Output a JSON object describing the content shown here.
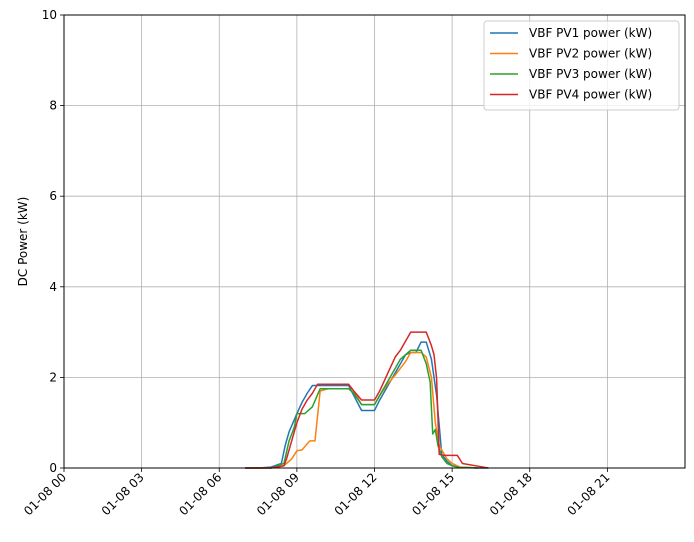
{
  "chart_data": {
    "type": "line",
    "title": "",
    "xlabel": "",
    "ylabel": "DC Power (kW)",
    "xlim": [
      0,
      24
    ],
    "ylim": [
      0,
      10
    ],
    "grid": true,
    "legend_position": "top-right",
    "x_ticks": [
      {
        "value": 0,
        "label": "01-08 00"
      },
      {
        "value": 3,
        "label": "01-08 03"
      },
      {
        "value": 6,
        "label": "01-08 06"
      },
      {
        "value": 9,
        "label": "01-08 09"
      },
      {
        "value": 12,
        "label": "01-08 12"
      },
      {
        "value": 15,
        "label": "01-08 15"
      },
      {
        "value": 18,
        "label": "01-08 18"
      },
      {
        "value": 21,
        "label": "01-08 21"
      }
    ],
    "y_ticks": [
      {
        "value": 0,
        "label": "0"
      },
      {
        "value": 2,
        "label": "2"
      },
      {
        "value": 4,
        "label": "4"
      },
      {
        "value": 6,
        "label": "6"
      },
      {
        "value": 8,
        "label": "8"
      },
      {
        "value": 10,
        "label": "10"
      }
    ],
    "series": [
      {
        "name": "VBF PV1 power (kW)",
        "color": "#1f77b4",
        "x": [
          7.0,
          7.5,
          8.0,
          8.4,
          8.55,
          8.7,
          8.85,
          9.0,
          9.2,
          9.4,
          9.6,
          10.0,
          10.5,
          11.0,
          11.2,
          11.5,
          12.0,
          12.2,
          12.4,
          12.6,
          12.8,
          13.0,
          13.2,
          13.4,
          13.6,
          13.8,
          14.0,
          14.2,
          14.4,
          14.6,
          14.8,
          15.0,
          15.3,
          16.0,
          16.4
        ],
        "y": [
          0.0,
          0.0,
          0.02,
          0.1,
          0.5,
          0.8,
          1.0,
          1.2,
          1.45,
          1.65,
          1.82,
          1.82,
          1.82,
          1.82,
          1.6,
          1.27,
          1.27,
          1.5,
          1.7,
          1.9,
          2.1,
          2.3,
          2.5,
          2.55,
          2.55,
          2.78,
          2.78,
          2.4,
          1.6,
          0.3,
          0.15,
          0.05,
          0.02,
          0.0,
          0.0
        ]
      },
      {
        "name": "VBF PV2 power (kW)",
        "color": "#ff7f0e",
        "x": [
          7.0,
          8.0,
          8.5,
          8.8,
          9.0,
          9.2,
          9.5,
          9.7,
          9.9,
          10.2,
          10.5,
          11.0,
          11.3,
          11.5,
          12.0,
          12.2,
          12.5,
          12.8,
          13.0,
          13.2,
          13.4,
          13.8,
          14.0,
          14.2,
          14.35,
          14.5,
          14.8,
          15.0,
          15.3,
          16.0
        ],
        "y": [
          0.0,
          0.0,
          0.05,
          0.2,
          0.38,
          0.4,
          0.6,
          0.6,
          1.7,
          1.75,
          1.75,
          1.75,
          1.6,
          1.4,
          1.4,
          1.6,
          1.85,
          2.05,
          2.2,
          2.35,
          2.55,
          2.55,
          2.45,
          2.0,
          1.0,
          0.5,
          0.2,
          0.1,
          0.02,
          0.0
        ]
      },
      {
        "name": "VBF PV3 power (kW)",
        "color": "#2ca02c",
        "x": [
          7.0,
          8.0,
          8.5,
          8.7,
          8.9,
          9.0,
          9.3,
          9.6,
          9.9,
          10.2,
          10.5,
          11.0,
          11.2,
          11.5,
          12.0,
          12.2,
          12.4,
          12.6,
          12.8,
          13.0,
          13.2,
          13.4,
          13.8,
          14.0,
          14.15,
          14.25,
          14.35,
          14.45,
          14.6,
          14.8,
          15.0,
          15.3,
          16.0
        ],
        "y": [
          0.0,
          0.0,
          0.1,
          0.6,
          0.9,
          1.2,
          1.2,
          1.35,
          1.75,
          1.75,
          1.75,
          1.75,
          1.65,
          1.4,
          1.4,
          1.6,
          1.8,
          2.0,
          2.2,
          2.4,
          2.5,
          2.6,
          2.6,
          2.3,
          1.9,
          0.75,
          0.85,
          0.5,
          0.25,
          0.1,
          0.05,
          0.01,
          0.0
        ]
      },
      {
        "name": "VBF PV4 power (kW)",
        "color": "#d62728",
        "x": [
          7.0,
          8.0,
          8.5,
          8.6,
          8.8,
          9.0,
          9.2,
          9.4,
          9.6,
          9.8,
          10.0,
          10.5,
          11.0,
          11.2,
          11.5,
          12.0,
          12.2,
          12.4,
          12.6,
          12.8,
          13.0,
          13.2,
          13.4,
          13.6,
          14.0,
          14.2,
          14.3,
          14.4,
          14.5,
          14.7,
          15.2,
          15.4,
          16.0,
          16.4
        ],
        "y": [
          0.0,
          0.0,
          0.05,
          0.2,
          0.6,
          1.0,
          1.3,
          1.5,
          1.65,
          1.85,
          1.85,
          1.85,
          1.85,
          1.7,
          1.5,
          1.5,
          1.7,
          1.95,
          2.2,
          2.45,
          2.6,
          2.8,
          3.0,
          3.0,
          3.0,
          2.7,
          2.5,
          1.98,
          0.3,
          0.28,
          0.28,
          0.1,
          0.04,
          0.0
        ]
      }
    ]
  }
}
